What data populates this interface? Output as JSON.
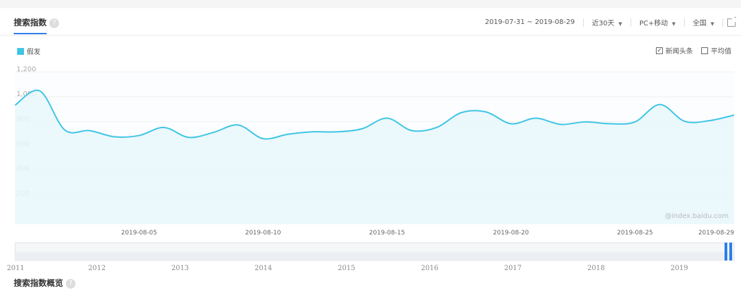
{
  "header": {
    "title": "搜索指数",
    "help_icon": "?",
    "date_range": "2019-07-31 ~ 2019-08-29",
    "period": "近30天",
    "device": "PC+移动",
    "region": "全国"
  },
  "legend": {
    "series_name": "假发",
    "color": "#3ec5e5"
  },
  "options": {
    "news_label": "新闻头条",
    "news_checked": true,
    "avg_label": "平均值",
    "avg_checked": false
  },
  "watermark": "@index.baidu.com",
  "footer_title": "搜索指数概览",
  "chart_data": {
    "type": "area",
    "ylim": [
      0,
      1200
    ],
    "yticks": [
      "1,200",
      "1,000",
      "800",
      "600",
      "400",
      "200"
    ],
    "x_ticks": [
      "2019-08-05",
      "2019-08-10",
      "2019-08-15",
      "2019-08-20",
      "2019-08-25",
      "2019-08-29"
    ],
    "series": [
      {
        "name": "假发",
        "color": "#3ec5e5",
        "x": [
          "2019-07-31",
          "2019-08-01",
          "2019-08-02",
          "2019-08-03",
          "2019-08-04",
          "2019-08-05",
          "2019-08-06",
          "2019-08-07",
          "2019-08-08",
          "2019-08-09",
          "2019-08-10",
          "2019-08-11",
          "2019-08-12",
          "2019-08-13",
          "2019-08-14",
          "2019-08-15",
          "2019-08-16",
          "2019-08-17",
          "2019-08-18",
          "2019-08-19",
          "2019-08-20",
          "2019-08-21",
          "2019-08-22",
          "2019-08-23",
          "2019-08-24",
          "2019-08-25",
          "2019-08-26",
          "2019-08-27",
          "2019-08-28",
          "2019-08-29"
        ],
        "values": [
          960,
          1075,
          760,
          755,
          705,
          715,
          780,
          700,
          740,
          800,
          690,
          725,
          745,
          745,
          770,
          855,
          755,
          780,
          900,
          905,
          810,
          855,
          805,
          825,
          810,
          825,
          965,
          830,
          835,
          880
        ]
      }
    ],
    "navigator": {
      "labels": [
        "2011",
        "2012",
        "2013",
        "2014",
        "2015",
        "2016",
        "2017",
        "2018",
        "2019"
      ]
    }
  }
}
